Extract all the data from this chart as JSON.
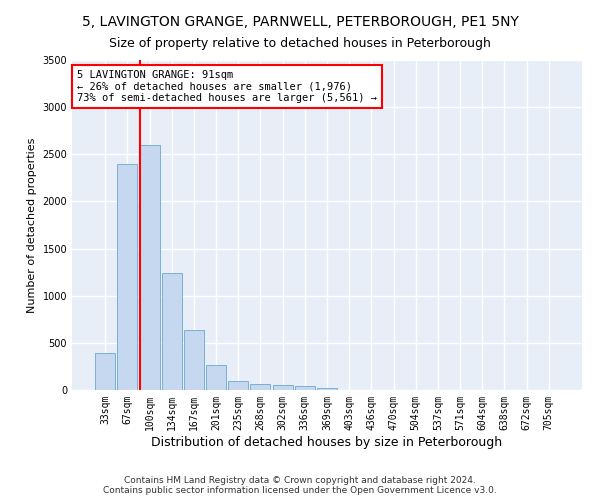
{
  "title1": "5, LAVINGTON GRANGE, PARNWELL, PETERBOROUGH, PE1 5NY",
  "title2": "Size of property relative to detached houses in Peterborough",
  "xlabel": "Distribution of detached houses by size in Peterborough",
  "ylabel": "Number of detached properties",
  "categories": [
    "33sqm",
    "67sqm",
    "100sqm",
    "134sqm",
    "167sqm",
    "201sqm",
    "235sqm",
    "268sqm",
    "302sqm",
    "336sqm",
    "369sqm",
    "403sqm",
    "436sqm",
    "470sqm",
    "504sqm",
    "537sqm",
    "571sqm",
    "604sqm",
    "638sqm",
    "672sqm",
    "705sqm"
  ],
  "values": [
    390,
    2400,
    2600,
    1240,
    640,
    260,
    95,
    60,
    55,
    40,
    25,
    0,
    0,
    0,
    0,
    0,
    0,
    0,
    0,
    0,
    0
  ],
  "bar_color": "#c5d8f0",
  "bar_edgecolor": "#7aafd4",
  "vline_x": 2.0,
  "annotation_text": "5 LAVINGTON GRANGE: 91sqm\n← 26% of detached houses are smaller (1,976)\n73% of semi-detached houses are larger (5,561) →",
  "annotation_box_color": "white",
  "annotation_box_edgecolor": "red",
  "vline_color": "red",
  "ylim": [
    0,
    3500
  ],
  "yticks": [
    0,
    500,
    1000,
    1500,
    2000,
    2500,
    3000,
    3500
  ],
  "background_color": "#e8eef8",
  "grid_color": "white",
  "footer": "Contains HM Land Registry data © Crown copyright and database right 2024.\nContains public sector information licensed under the Open Government Licence v3.0.",
  "title_fontsize": 10,
  "subtitle_fontsize": 9,
  "ylabel_fontsize": 8,
  "xlabel_fontsize": 9,
  "tick_fontsize": 7,
  "annotation_fontsize": 7.5
}
